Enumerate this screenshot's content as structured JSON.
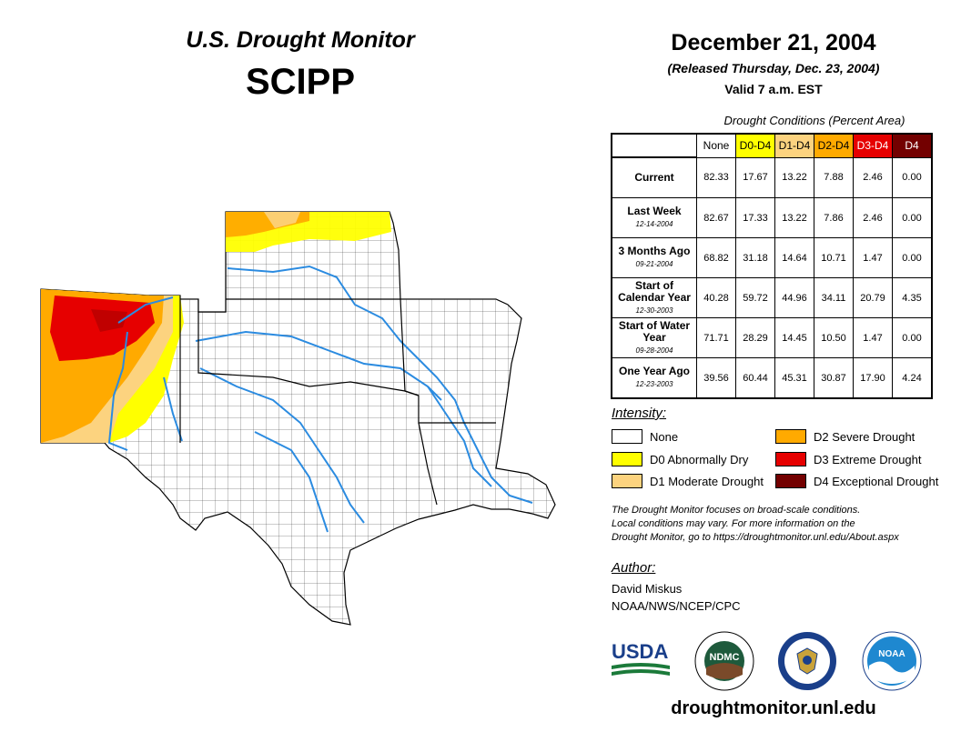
{
  "header": {
    "title": "U.S. Drought Monitor",
    "region": "SCIPP",
    "date": "December 21, 2004",
    "released": "(Released Thursday, Dec. 23, 2004)",
    "valid": "Valid 7 a.m. EST"
  },
  "table": {
    "caption": "Drought Conditions (Percent Area)",
    "columns": [
      "None",
      "D0-D4",
      "D1-D4",
      "D2-D4",
      "D3-D4",
      "D4"
    ],
    "column_colors": [
      "#ffffff",
      "#ffff00",
      "#fcd37f",
      "#ffaa00",
      "#e60000",
      "#730000"
    ],
    "rows": [
      {
        "label": "Current",
        "date": "",
        "values": [
          "82.33",
          "17.67",
          "13.22",
          "7.88",
          "2.46",
          "0.00"
        ]
      },
      {
        "label": "Last Week",
        "date": "12-14-2004",
        "values": [
          "82.67",
          "17.33",
          "13.22",
          "7.86",
          "2.46",
          "0.00"
        ]
      },
      {
        "label": "3 Months Ago",
        "date": "09-21-2004",
        "values": [
          "68.82",
          "31.18",
          "14.64",
          "10.71",
          "1.47",
          "0.00"
        ]
      },
      {
        "label": "Start of Calendar Year",
        "date": "12-30-2003",
        "values": [
          "40.28",
          "59.72",
          "44.96",
          "34.11",
          "20.79",
          "4.35"
        ]
      },
      {
        "label": "Start of Water Year",
        "date": "09-28-2004",
        "values": [
          "71.71",
          "28.29",
          "14.45",
          "10.50",
          "1.47",
          "0.00"
        ]
      },
      {
        "label": "One Year Ago",
        "date": "12-23-2003",
        "values": [
          "39.56",
          "60.44",
          "45.31",
          "30.87",
          "17.90",
          "4.24"
        ]
      }
    ]
  },
  "legend": {
    "title": "Intensity:",
    "items": [
      {
        "label": "None",
        "color": "#ffffff"
      },
      {
        "label": "D0 Abnormally Dry",
        "color": "#ffff00"
      },
      {
        "label": "D1 Moderate Drought",
        "color": "#fcd37f"
      },
      {
        "label": "D2 Severe Drought",
        "color": "#ffaa00"
      },
      {
        "label": "D3 Extreme Drought",
        "color": "#e60000"
      },
      {
        "label": "D4 Exceptional Drought",
        "color": "#730000"
      }
    ]
  },
  "note": {
    "line1": "The Drought Monitor focuses on broad-scale conditions.",
    "line2": "Local conditions may vary. For more information on the",
    "line3": "Drought Monitor, go to https://droughtmonitor.unl.edu/About.aspx"
  },
  "author": {
    "title": "Author:",
    "name": "David Miskus",
    "org": "NOAA/NWS/NCEP/CPC"
  },
  "logos": {
    "usda": "USDA",
    "ndmc": "NDMC",
    "noaa": "NOAA"
  },
  "footer": {
    "website": "droughtmonitor.unl.edu"
  },
  "map": {
    "description_states": [
      "Kansas",
      "Oklahoma",
      "Texas",
      "New Mexico",
      "Arkansas",
      "Louisiana",
      "Colorado"
    ]
  }
}
